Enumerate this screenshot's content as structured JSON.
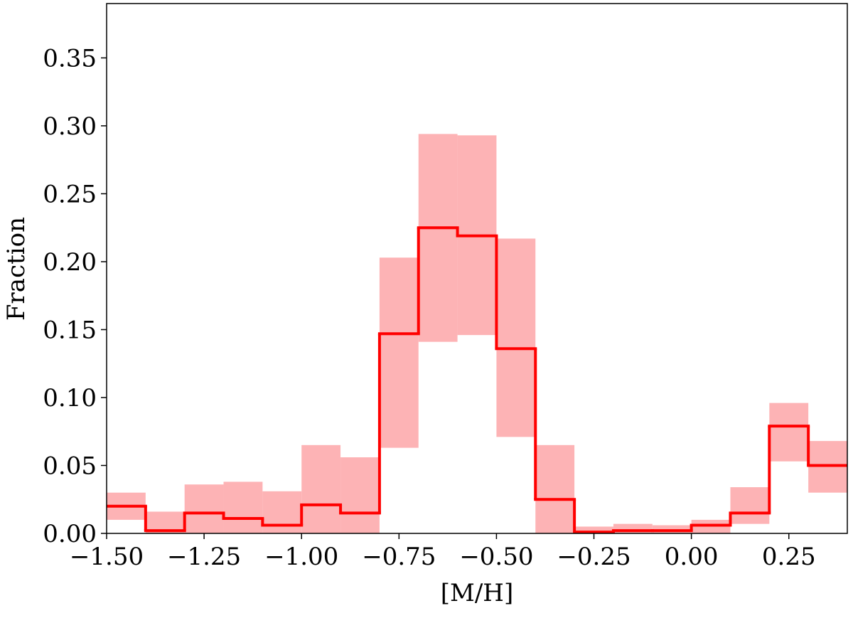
{
  "chart_data": {
    "type": "step_histogram",
    "xlabel": "[M/H]",
    "ylabel": "Fraction",
    "bins": [
      -1.5,
      -1.4,
      -1.3,
      -1.2,
      -1.1,
      -1.0,
      -0.9,
      -0.8,
      -0.7,
      -0.6,
      -0.5,
      -0.4,
      -0.3,
      -0.2,
      -0.1,
      0.0,
      0.1,
      0.2,
      0.3,
      0.4
    ],
    "values": [
      0.02,
      0.002,
      0.015,
      0.011,
      0.006,
      0.021,
      0.015,
      0.147,
      0.225,
      0.219,
      0.136,
      0.025,
      0.001,
      0.002,
      0.002,
      0.006,
      0.015,
      0.079,
      0.05
    ],
    "lower": [
      0.01,
      0.0,
      0.0,
      0.0,
      0.0,
      0.0,
      0.0,
      0.063,
      0.141,
      0.146,
      0.071,
      0.0,
      0.0,
      0.0,
      0.0,
      0.0,
      0.007,
      0.053,
      0.03
    ],
    "upper": [
      0.03,
      0.016,
      0.036,
      0.038,
      0.031,
      0.065,
      0.056,
      0.203,
      0.294,
      0.293,
      0.217,
      0.065,
      0.005,
      0.007,
      0.006,
      0.01,
      0.034,
      0.096,
      0.068
    ],
    "line_color": "#ff0000",
    "band_color": "#fdb3b5",
    "xlim": [
      -1.5,
      0.4
    ],
    "ylim": [
      0,
      0.39
    ],
    "xticks": [
      {
        "value": -1.5,
        "label": "−1.50"
      },
      {
        "value": -1.25,
        "label": "−1.25"
      },
      {
        "value": -1.0,
        "label": "−1.00"
      },
      {
        "value": -0.75,
        "label": "−0.75"
      },
      {
        "value": -0.5,
        "label": "−0.50"
      },
      {
        "value": -0.25,
        "label": "−0.25"
      },
      {
        "value": 0,
        "label": "0.00"
      },
      {
        "value": 0.25,
        "label": "0.25"
      }
    ],
    "yticks": [
      {
        "value": 0,
        "label": "0.00"
      },
      {
        "value": 0.05,
        "label": "0.05"
      },
      {
        "value": 0.1,
        "label": "0.10"
      },
      {
        "value": 0.15,
        "label": "0.15"
      },
      {
        "value": 0.2,
        "label": "0.20"
      },
      {
        "value": 0.25,
        "label": "0.25"
      },
      {
        "value": 0.3,
        "label": "0.30"
      },
      {
        "value": 0.35,
        "label": "0.35"
      }
    ]
  }
}
